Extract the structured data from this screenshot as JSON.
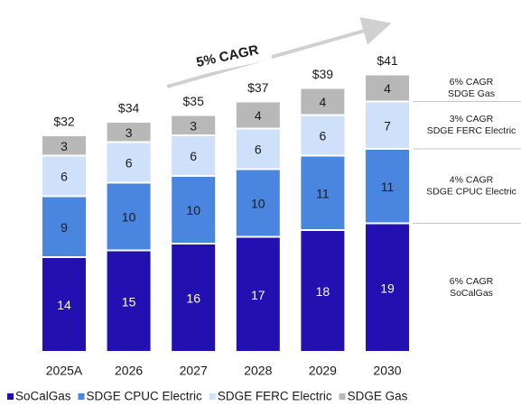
{
  "chart_data": {
    "type": "stacked-bar",
    "annotation": "5% CAGR",
    "categories": [
      "2025A",
      "2026",
      "2027",
      "2028",
      "2029",
      "2030"
    ],
    "series": [
      {
        "name": "SoCalGas",
        "color": "#2210b0",
        "text_color": "#ffffff",
        "values": [
          14,
          15,
          16,
          17,
          18,
          19
        ],
        "side_label": [
          "6% CAGR",
          "SoCalGas"
        ]
      },
      {
        "name": "SDGE CPUC Electric",
        "color": "#4a86e0",
        "text_color": "#1a1a1a",
        "values": [
          9,
          10,
          10,
          10,
          11,
          11
        ],
        "side_label": [
          "4% CAGR",
          "SDGE CPUC Electric"
        ]
      },
      {
        "name": "SDGE FERC Electric",
        "color": "#cfe0fa",
        "text_color": "#1a1a1a",
        "values": [
          6,
          6,
          6,
          6,
          6,
          7
        ],
        "side_label": [
          "3% CAGR",
          "SDGE FERC Electric"
        ]
      },
      {
        "name": "SDGE Gas",
        "color": "#b8b8b8",
        "text_color": "#1a1a1a",
        "values": [
          3,
          3,
          3,
          4,
          4,
          4
        ],
        "side_label": [
          "6% CAGR",
          "SDGE Gas"
        ]
      }
    ],
    "totals": {
      "values": [
        32,
        34,
        35,
        37,
        39,
        41
      ],
      "value_labels": [
        "$32",
        "$34",
        "$35",
        "$37",
        "$39",
        "$41"
      ]
    }
  }
}
